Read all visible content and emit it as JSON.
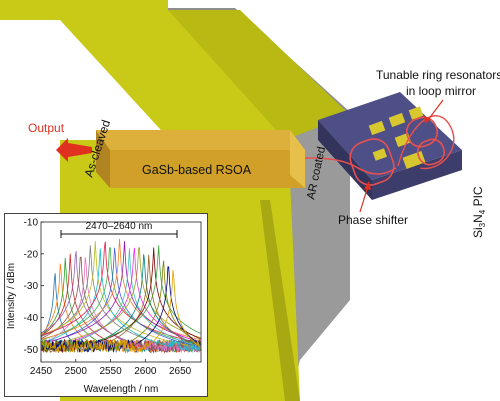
{
  "labels": {
    "output": "Output",
    "as_cleaved": "As-cleaved",
    "rsoa": "GaSb-based RSOA",
    "ar_coated": "AR coated",
    "tunable_line1": "Tunable ring resonators",
    "tunable_line2": "in loop mirror",
    "phase_shifter": "Phase shifter",
    "pic_prefix": "Si",
    "pic_sub1": "3",
    "pic_mid": "N",
    "pic_sub2": "4",
    "pic_suffix": " PIC"
  },
  "colors": {
    "gold": "#c9c918",
    "gold_dark": "#8f8f10",
    "rsoa": "#d0a028",
    "chip": "#4e4f86",
    "substrate": "#9a9a9a",
    "arrow": "#e03020",
    "waveguide": "#e85050"
  },
  "chart_data": {
    "type": "line",
    "title": "",
    "range_label": "2470–2640 nm",
    "xlabel": "Wavelength / nm",
    "ylabel": "Intensity / dBm",
    "xlim": [
      2450,
      2680
    ],
    "ylim": [
      -54,
      -10
    ],
    "xticks": [
      2450,
      2500,
      2550,
      2600,
      2650
    ],
    "yticks": [
      -50,
      -40,
      -30,
      -20,
      -10
    ],
    "peak_wavelengths": [
      2470,
      2478,
      2485,
      2492,
      2500,
      2507,
      2514,
      2521,
      2528,
      2535,
      2542,
      2549,
      2556,
      2563,
      2570,
      2577,
      2584,
      2591,
      2598,
      2605,
      2612,
      2619,
      2626,
      2633,
      2640
    ],
    "peak_levels": [
      -25,
      -22,
      -21,
      -20,
      -18,
      -19,
      -20,
      -17,
      -16,
      -18,
      -15,
      -16,
      -17,
      -15,
      -16,
      -18,
      -17,
      -16,
      -19,
      -20,
      -18,
      -17,
      -21,
      -22,
      -24
    ],
    "noise_floor": -49
  }
}
